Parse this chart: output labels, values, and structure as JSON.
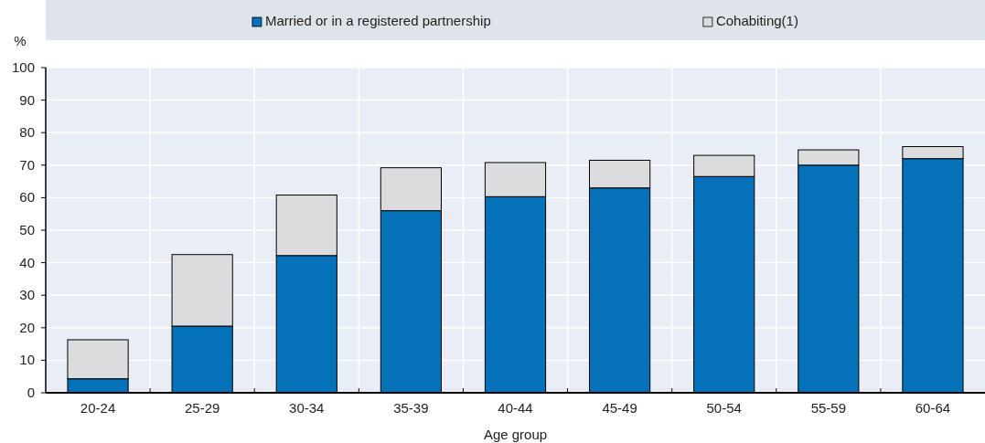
{
  "chart_data": {
    "type": "bar",
    "stacked": true,
    "xlabel": "Age group",
    "ylabel": "%",
    "categories": [
      "20-24",
      "25-29",
      "30-34",
      "35-39",
      "40-44",
      "45-49",
      "50-54",
      "55-59",
      "60-64"
    ],
    "series": [
      {
        "name": "Married or in a registered partnership",
        "color": "#0571b9",
        "values": [
          4.3,
          20.5,
          42.2,
          56,
          60.3,
          63,
          66.5,
          70,
          72
        ]
      },
      {
        "name": "Cohabiting(1)",
        "color": "#dcdcde",
        "values": [
          12,
          22,
          18.6,
          13.2,
          10.5,
          8.5,
          6.5,
          4.7,
          3.7
        ]
      }
    ],
    "ylim": [
      0,
      100
    ],
    "yticks": [
      0,
      10,
      20,
      30,
      40,
      50,
      60,
      70,
      80,
      90,
      100
    ],
    "grid": true,
    "legend": "top"
  }
}
